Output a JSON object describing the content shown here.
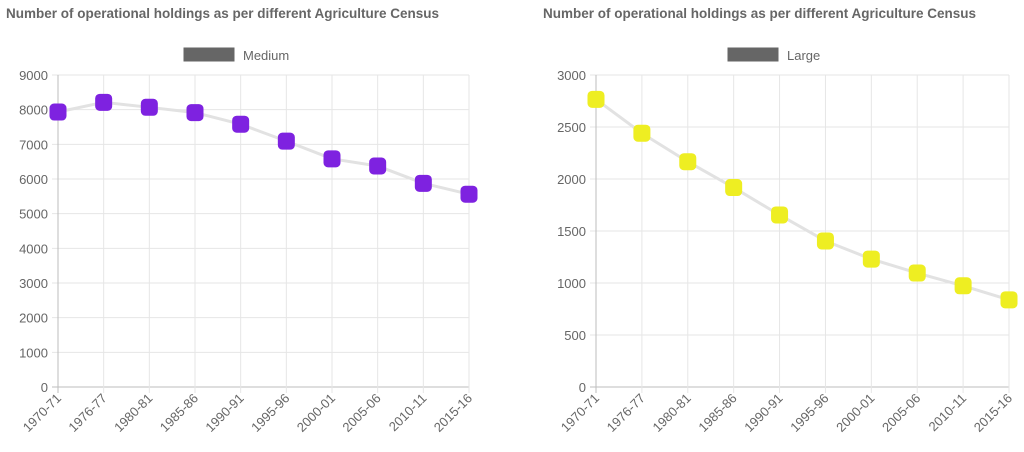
{
  "chart_data": [
    {
      "type": "line",
      "title": "Number of operational holdings as per different Agriculture Census",
      "categories": [
        "1970-71",
        "1976-77",
        "1980-81",
        "1985-86",
        "1990-91",
        "1995-96",
        "2000-01",
        "2005-06",
        "2010-11",
        "2015-16"
      ],
      "series": [
        {
          "name": "Medium",
          "values": [
            7932,
            8212,
            8068,
            7916,
            7580,
            7092,
            6582,
            6375,
            5875,
            5561
          ],
          "point_color": "#7e22e0",
          "line_color": "#e2e2e2",
          "legend_swatch": "#666666"
        }
      ],
      "ylim": [
        0,
        9000
      ],
      "yticks": [
        0,
        1000,
        2000,
        3000,
        4000,
        5000,
        6000,
        7000,
        8000,
        9000
      ],
      "grid": true,
      "legend": "top-center",
      "xlabel": "",
      "ylabel": ""
    },
    {
      "type": "line",
      "title": "Number of operational holdings as per different Agriculture Census",
      "categories": [
        "1970-71",
        "1976-77",
        "1980-81",
        "1985-86",
        "1990-91",
        "1995-96",
        "2000-01",
        "2005-06",
        "2010-11",
        "2015-16"
      ],
      "series": [
        {
          "name": "Large",
          "values": [
            2766,
            2440,
            2166,
            1918,
            1654,
            1404,
            1230,
            1096,
            973,
            838
          ],
          "point_color": "#eeee22",
          "line_color": "#e2e2e2",
          "legend_swatch": "#666666"
        }
      ],
      "ylim": [
        0,
        3000
      ],
      "yticks": [
        0,
        500,
        1000,
        1500,
        2000,
        2500,
        3000
      ],
      "grid": true,
      "legend": "top-center",
      "xlabel": "",
      "ylabel": ""
    }
  ]
}
